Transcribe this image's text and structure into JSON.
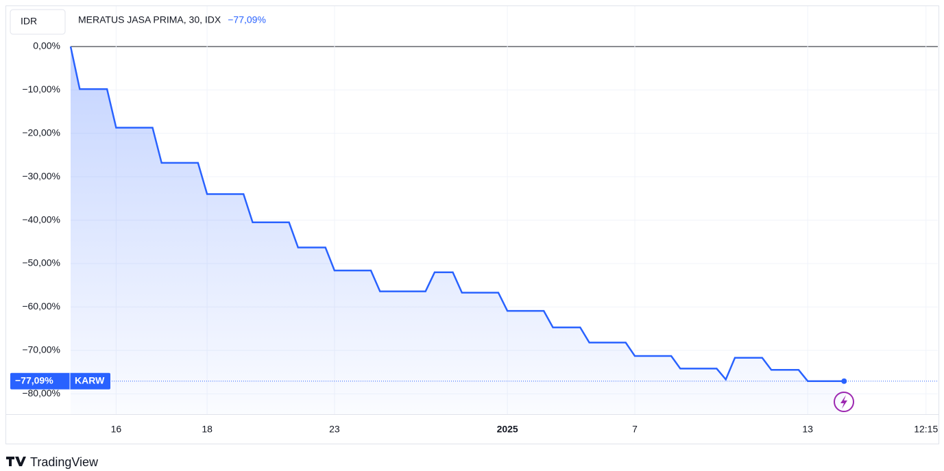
{
  "header": {
    "currency": "IDR",
    "symbol_title": "MERATUS JASA PRIMA, 30, IDX",
    "change": "−77,09%"
  },
  "chart_data": {
    "type": "line",
    "categories": [
      null,
      null,
      null,
      null,
      null,
      "16",
      null,
      null,
      null,
      null,
      null,
      null,
      null,
      null,
      null,
      "18",
      null,
      null,
      null,
      null,
      null,
      null,
      null,
      null,
      null,
      null,
      null,
      null,
      null,
      "23",
      null,
      null,
      null,
      null,
      null,
      null,
      null,
      null,
      null,
      null,
      null,
      null,
      null,
      null,
      null,
      null,
      null,
      null,
      "2025",
      null,
      null,
      null,
      null,
      null,
      null,
      null,
      null,
      null,
      null,
      null,
      null,
      null,
      "7",
      null,
      null,
      null,
      null,
      null,
      null,
      null,
      null,
      null,
      null,
      null,
      null,
      null,
      null,
      null,
      null,
      null,
      null,
      "13",
      null,
      null,
      null,
      null,
      null,
      null,
      null,
      null,
      null,
      null,
      null,
      null,
      "12:15",
      null
    ],
    "series": [
      {
        "name": "KARW",
        "color": "#2962ff",
        "values": [
          0,
          -9.8,
          -9.8,
          -9.8,
          -9.8,
          -18.7,
          -18.7,
          -18.7,
          -18.7,
          -18.7,
          -26.8,
          -26.8,
          -26.8,
          -26.8,
          -26.8,
          -34.0,
          -34.0,
          -34.0,
          -34.0,
          -34.0,
          -40.5,
          -40.5,
          -40.5,
          -40.5,
          -40.5,
          -46.3,
          -46.3,
          -46.3,
          -46.3,
          -51.6,
          -51.6,
          -51.6,
          -51.6,
          -51.6,
          -56.4,
          -56.4,
          -56.4,
          -56.4,
          -56.4,
          -56.4,
          -52.0,
          -52.0,
          -52.0,
          -56.7,
          -56.7,
          -56.7,
          -56.7,
          -56.7,
          -60.9,
          -60.9,
          -60.9,
          -60.9,
          -60.9,
          -64.7,
          -64.7,
          -64.7,
          -64.7,
          -68.2,
          -68.2,
          -68.2,
          -68.2,
          -68.2,
          -71.3,
          -71.3,
          -71.3,
          -71.3,
          -71.3,
          -74.2,
          -74.2,
          -74.2,
          -74.2,
          -74.2,
          -76.7,
          -71.7,
          -71.7,
          -71.7,
          -71.7,
          -74.5,
          -74.5,
          -74.5,
          -74.5,
          -77.09,
          -77.09,
          -77.09,
          -77.09,
          -77.09,
          null,
          null,
          null,
          null,
          null,
          null,
          null,
          null,
          null,
          null
        ],
        "last_value_label": "−77,09%"
      }
    ],
    "ylim": [
      -84.7,
      9.3
    ],
    "yticks": [
      {
        "value": 0,
        "label": "0,00%"
      },
      {
        "value": -10,
        "label": "−10,00%"
      },
      {
        "value": -20,
        "label": "−20,00%"
      },
      {
        "value": -30,
        "label": "−30,00%"
      },
      {
        "value": -40,
        "label": "−40,00%"
      },
      {
        "value": -50,
        "label": "−50,00%"
      },
      {
        "value": -60,
        "label": "−60,00%"
      },
      {
        "value": -70,
        "label": "−70,00%"
      },
      {
        "value": -80,
        "label": "−80,00%"
      }
    ],
    "grid": true
  },
  "footer": {
    "brand": "TradingView"
  }
}
